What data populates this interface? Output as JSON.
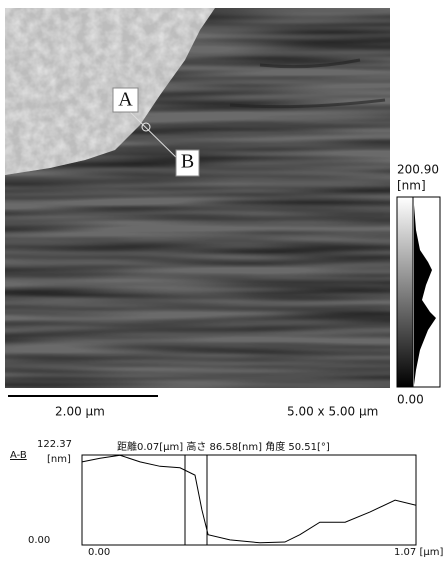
{
  "image": {
    "point_a": "A",
    "point_b": "B",
    "scale_bar": "2.00 µm",
    "scan_size": "5.00 x 5.00 µm"
  },
  "colorbar": {
    "range": [
      {
        "value": 0,
        "label": "0.00"
      },
      {
        "value": 200.9,
        "label": "200.90"
      }
    ],
    "unit": "[nm]"
  },
  "profile": {
    "label": "A-B",
    "unit": "[nm]",
    "info": "距離0.07[µm] 高さ 86.58[nm] 角度 50.51[°]",
    "xlim": [
      {
        "value": 0,
        "label": "0.00"
      },
      {
        "value": 1.07,
        "label": "1.07 [µm]"
      }
    ],
    "ylim": [
      {
        "value": 0,
        "label": "0.00"
      },
      {
        "value": 122.37,
        "label": "122.37"
      }
    ],
    "x": [
      0,
      0.058,
      0.122,
      0.186,
      0.25,
      0.314,
      0.362,
      0.384,
      0.404,
      0.474,
      0.57,
      0.65,
      0.698,
      0.762,
      0.843,
      0.923,
      1.003,
      1.07
    ],
    "values": [
      113,
      118,
      122,
      113,
      107,
      105,
      95,
      48,
      14,
      7,
      3,
      4,
      14,
      31,
      31,
      45,
      61,
      54
    ]
  }
}
